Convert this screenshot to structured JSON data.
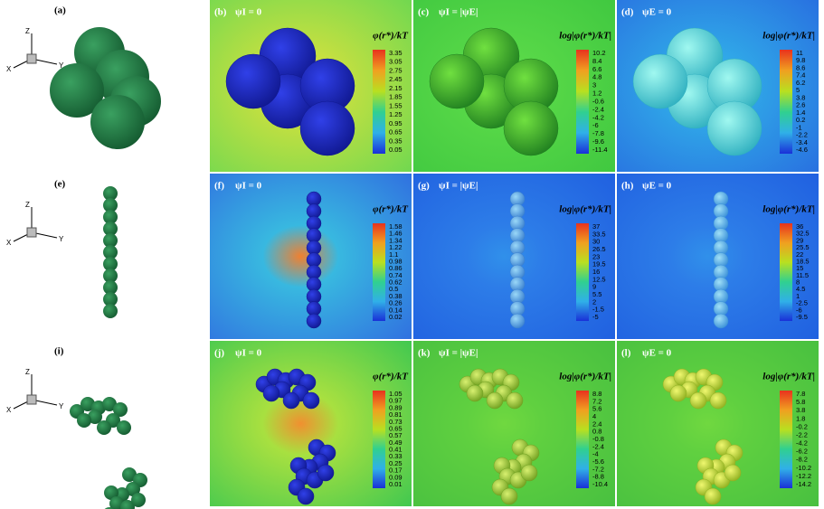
{
  "figure": {
    "left": [
      {
        "label": "(a)",
        "axes": {
          "x": "X",
          "y": "Y",
          "z": "Z"
        }
      },
      {
        "label": "(e)",
        "axes": {
          "x": "X",
          "y": "Y",
          "z": "Z"
        }
      },
      {
        "label": "(i)",
        "axes": {
          "x": "X",
          "y": "Y",
          "z": "Z"
        }
      }
    ],
    "panels": [
      {
        "label": "(b)",
        "title": "ψI = 0",
        "colorbar": {
          "label": "φ(r*)/kT",
          "ticks": [
            "3.35",
            "3.05",
            "2.75",
            "2.45",
            "2.15",
            "1.85",
            "1.55",
            "1.25",
            "0.95",
            "0.65",
            "0.35",
            "0.05"
          ]
        }
      },
      {
        "label": "(c)",
        "title": "ψI = |ψE|",
        "colorbar": {
          "label": "log|φ(r*)/kT|",
          "ticks": [
            "10.2",
            "8.4",
            "6.6",
            "4.8",
            "3",
            "1.2",
            "-0.6",
            "-2.4",
            "-4.2",
            "-6",
            "-7.8",
            "-9.6",
            "-11.4"
          ]
        }
      },
      {
        "label": "(d)",
        "title": "ψE = 0",
        "colorbar": {
          "label": "log|φ(r*)/kT|",
          "ticks": [
            "11",
            "9.8",
            "8.6",
            "7.4",
            "6.2",
            "5",
            "3.8",
            "2.6",
            "1.4",
            "0.2",
            "-1",
            "-2.2",
            "-3.4",
            "-4.6"
          ]
        }
      },
      {
        "label": "(f)",
        "title": "ψI = 0",
        "colorbar": {
          "label": "φ(r*)/kT",
          "ticks": [
            "1.58",
            "1.46",
            "1.34",
            "1.22",
            "1.1",
            "0.98",
            "0.86",
            "0.74",
            "0.62",
            "0.5",
            "0.38",
            "0.26",
            "0.14",
            "0.02"
          ]
        }
      },
      {
        "label": "(g)",
        "title": "ψI = |ψE|",
        "colorbar": {
          "label": "log|φ(r*)/kT|",
          "ticks": [
            "37",
            "33.5",
            "30",
            "26.5",
            "23",
            "19.5",
            "16",
            "12.5",
            "9",
            "5.5",
            "2",
            "-1.5",
            "-5"
          ]
        }
      },
      {
        "label": "(h)",
        "title": "ψE = 0",
        "colorbar": {
          "label": "log|φ(r*)/kT|",
          "ticks": [
            "36",
            "32.5",
            "29",
            "25.5",
            "22",
            "18.5",
            "15",
            "11.5",
            "8",
            "4.5",
            "1",
            "-2.5",
            "-6",
            "-9.5"
          ]
        }
      },
      {
        "label": "(j)",
        "title": "ψI = 0",
        "colorbar": {
          "label": "φ(r*)/kT",
          "ticks": [
            "1.05",
            "0.97",
            "0.89",
            "0.81",
            "0.73",
            "0.65",
            "0.57",
            "0.49",
            "0.41",
            "0.33",
            "0.25",
            "0.17",
            "0.09",
            "0.01"
          ]
        }
      },
      {
        "label": "(k)",
        "title": "ψI = |ψE|",
        "colorbar": {
          "label": "log|φ(r*)/kT|",
          "ticks": [
            "8.8",
            "7.2",
            "5.6",
            "4",
            "2.4",
            "0.8",
            "-0.8",
            "-2.4",
            "-4",
            "-5.6",
            "-7.2",
            "-8.8",
            "-10.4"
          ]
        }
      },
      {
        "label": "(l)",
        "title": "ψE = 0",
        "colorbar": {
          "label": "log|φ(r*)/kT|",
          "ticks": [
            "7.8",
            "5.8",
            "3.8",
            "1.8",
            "-0.2",
            "-2.2",
            "-4.2",
            "-6.2",
            "-8.2",
            "-10.2",
            "-12.2",
            "-14.2"
          ]
        }
      }
    ]
  }
}
